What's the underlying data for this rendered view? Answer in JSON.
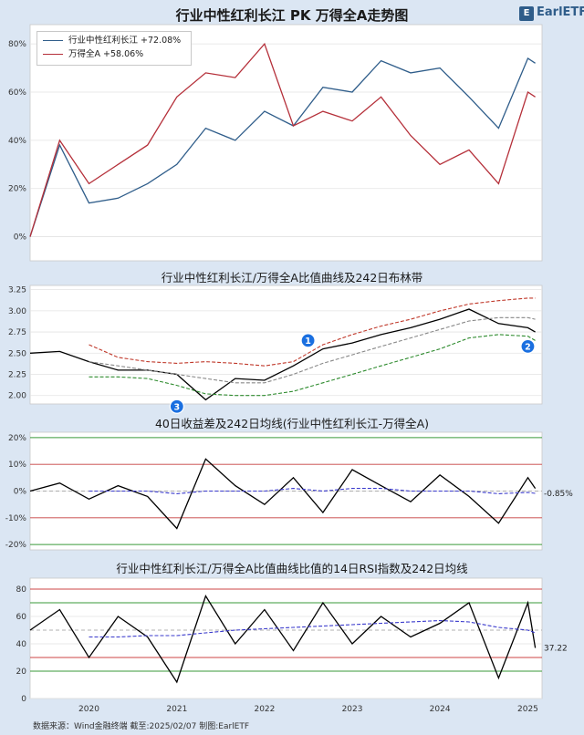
{
  "title": "行业中性红利长江 PK 万得全A走势图",
  "logo_text": "EarlETF",
  "legend": [
    {
      "label": "行业中性红利长江  +72.08%",
      "color": "#2f5d8a"
    },
    {
      "label": "万得全A  +58.06%",
      "color": "#b5303a"
    }
  ],
  "panel2_title": "行业中性红利长江/万得全A比值曲线及242日布林带",
  "panel3_title": "40日收益差及242日均线(行业中性红利长江-万得全A)",
  "panel4_title": "行业中性红利长江/万得全A比值曲线比值的14日RSI指数及242日均线",
  "footer": "数据来源：Wind金融终端 截至:2025/02/07 制图:EarlETF",
  "x_axis_labels": [
    "2020",
    "2021",
    "2022",
    "2023",
    "2024",
    "2025"
  ],
  "chart_data": [
    {
      "type": "line",
      "title": "行业中性红利长江 PK 万得全A走势图",
      "yticks": [
        "0%",
        "20%",
        "40%",
        "60%",
        "80%"
      ],
      "ylim": [
        -10,
        88
      ],
      "x": [
        "2019-05",
        "2019-09",
        "2020-01",
        "2020-05",
        "2020-09",
        "2021-01",
        "2021-05",
        "2021-09",
        "2022-01",
        "2022-05",
        "2022-09",
        "2023-01",
        "2023-05",
        "2023-09",
        "2024-01",
        "2024-05",
        "2024-09",
        "2025-01",
        "2025-02"
      ],
      "series": [
        {
          "name": "行业中性红利长江",
          "color": "#2f5d8a",
          "values": [
            0,
            38,
            14,
            16,
            22,
            30,
            45,
            40,
            52,
            46,
            62,
            60,
            73,
            68,
            70,
            58,
            45,
            74,
            72
          ]
        },
        {
          "name": "万得全A",
          "color": "#b5303a",
          "values": [
            0,
            40,
            22,
            30,
            38,
            58,
            68,
            66,
            80,
            46,
            52,
            48,
            58,
            42,
            30,
            36,
            22,
            60,
            58
          ]
        }
      ]
    },
    {
      "type": "line",
      "title": "行业中性红利长江/万得全A比值曲线及242日布林带",
      "yticks": [
        "2.00",
        "2.25",
        "2.50",
        "2.75",
        "3.00",
        "3.25"
      ],
      "ylim": [
        1.9,
        3.3
      ],
      "x": [
        "2019-05",
        "2019-09",
        "2020-01",
        "2020-05",
        "2020-09",
        "2021-01",
        "2021-05",
        "2021-09",
        "2022-01",
        "2022-05",
        "2022-09",
        "2023-01",
        "2023-05",
        "2023-09",
        "2024-01",
        "2024-05",
        "2024-09",
        "2025-01",
        "2025-02"
      ],
      "series": [
        {
          "name": "",
          "color": "#000000",
          "values": [
            2.5,
            2.52,
            2.4,
            2.3,
            2.3,
            2.25,
            1.95,
            2.2,
            2.18,
            2.35,
            2.55,
            2.62,
            2.72,
            2.8,
            2.9,
            3.02,
            2.85,
            2.8,
            2.75
          ]
        },
        {
          "name": "",
          "color": "#c0392b",
          "values": [
            null,
            null,
            2.6,
            2.45,
            2.4,
            2.38,
            2.4,
            2.38,
            2.35,
            2.4,
            2.6,
            2.72,
            2.82,
            2.9,
            3.0,
            3.08,
            3.12,
            3.15,
            3.15
          ]
        },
        {
          "name": "",
          "color": "#888888",
          "values": [
            null,
            null,
            2.4,
            2.35,
            2.3,
            2.25,
            2.2,
            2.15,
            2.15,
            2.25,
            2.38,
            2.48,
            2.58,
            2.68,
            2.78,
            2.88,
            2.92,
            2.92,
            2.9
          ]
        },
        {
          "name": "",
          "color": "#2e8b2e",
          "values": [
            null,
            null,
            2.22,
            2.22,
            2.2,
            2.12,
            2.02,
            2.0,
            2.0,
            2.05,
            2.15,
            2.25,
            2.35,
            2.45,
            2.55,
            2.68,
            2.72,
            2.7,
            2.65
          ]
        }
      ],
      "annotations": [
        {
          "label": "1",
          "x": "2022-07",
          "y": 2.65
        },
        {
          "label": "2",
          "x": "2025-01",
          "y": 2.58
        },
        {
          "label": "3",
          "x": "2021-01",
          "y": 1.87
        }
      ]
    },
    {
      "type": "line",
      "title": "40日收益差及242日均线(行业中性红利长江-万得全A)",
      "yticks": [
        "-20%",
        "-10%",
        "0%",
        "10%",
        "20%"
      ],
      "ylim": [
        -22,
        22
      ],
      "reference_lines": [
        20,
        10,
        -10,
        -20
      ],
      "x": [
        "2019-05",
        "2019-09",
        "2020-01",
        "2020-05",
        "2020-09",
        "2021-01",
        "2021-05",
        "2021-09",
        "2022-01",
        "2022-05",
        "2022-09",
        "2023-01",
        "2023-05",
        "2023-09",
        "2024-01",
        "2024-05",
        "2024-09",
        "2025-01",
        "2025-02"
      ],
      "series": [
        {
          "name": "",
          "color": "#000000",
          "values": [
            0,
            3,
            -3,
            2,
            -2,
            -14,
            12,
            2,
            -5,
            5,
            -8,
            8,
            2,
            -4,
            6,
            -2,
            -12,
            5,
            1
          ]
        },
        {
          "name": "",
          "color": "#3a3acc",
          "values": [
            null,
            null,
            0,
            0,
            0,
            -1,
            0,
            0,
            0,
            1,
            0,
            1,
            1,
            0,
            0,
            0,
            -1,
            -0.5,
            -0.85
          ]
        }
      ],
      "end_label": "-0.85%"
    },
    {
      "type": "line",
      "title": "行业中性红利长江/万得全A比值曲线比值的14日RSI指数及242日均线",
      "yticks": [
        "0",
        "20",
        "40",
        "60",
        "80"
      ],
      "ylim": [
        0,
        88
      ],
      "reference_lines": [
        80,
        70,
        30,
        20
      ],
      "x": [
        "2019-05",
        "2019-09",
        "2020-01",
        "2020-05",
        "2020-09",
        "2021-01",
        "2021-05",
        "2021-09",
        "2022-01",
        "2022-05",
        "2022-09",
        "2023-01",
        "2023-05",
        "2023-09",
        "2024-01",
        "2024-05",
        "2024-09",
        "2025-01",
        "2025-02"
      ],
      "series": [
        {
          "name": "",
          "color": "#000000",
          "values": [
            50,
            65,
            30,
            60,
            45,
            12,
            75,
            40,
            65,
            35,
            70,
            40,
            60,
            45,
            55,
            70,
            15,
            70,
            37
          ]
        },
        {
          "name": "",
          "color": "#3a3acc",
          "values": [
            null,
            null,
            45,
            45,
            46,
            46,
            48,
            50,
            51,
            52,
            53,
            54,
            55,
            56,
            57,
            56,
            52,
            50,
            48
          ]
        }
      ],
      "end_label": "37.22"
    }
  ]
}
